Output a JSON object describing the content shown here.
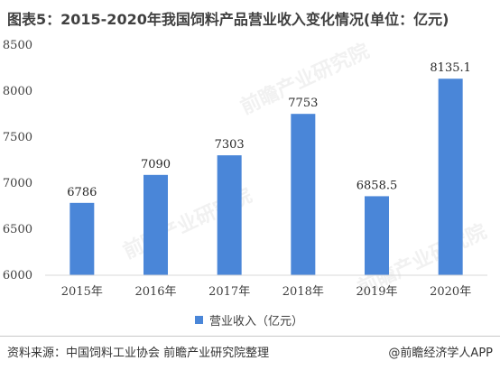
{
  "title": "图表5：2015-2020年我国饲料产品营业收入变化情况(单位：亿元)",
  "legend_label": "营业收入（亿元）",
  "source": "资料来源：中国饲料工业协会 前瞻产业研究院整理",
  "brand": "@前瞻经济学人APP",
  "watermark": "前瞻产业研究院",
  "colors": {
    "bar": "#4a86d8",
    "axis": "#d9d9d9"
  },
  "chart_data": {
    "type": "bar",
    "categories": [
      "2015年",
      "2016年",
      "2017年",
      "2018年",
      "2019年",
      "2020年"
    ],
    "series": [
      {
        "name": "营业收入（亿元）",
        "values": [
          6786,
          7090,
          7303,
          7753,
          6858.5,
          8135.1
        ]
      }
    ],
    "data_labels": [
      "6786",
      "7090",
      "7303",
      "7753",
      "6858.5",
      "8135.1"
    ],
    "ylim": [
      6000,
      8500
    ],
    "yticks": [
      6000,
      6500,
      7000,
      7500,
      8000,
      8500
    ],
    "xlabel": "",
    "ylabel": "",
    "legend": "bottom-center",
    "grid": false
  }
}
